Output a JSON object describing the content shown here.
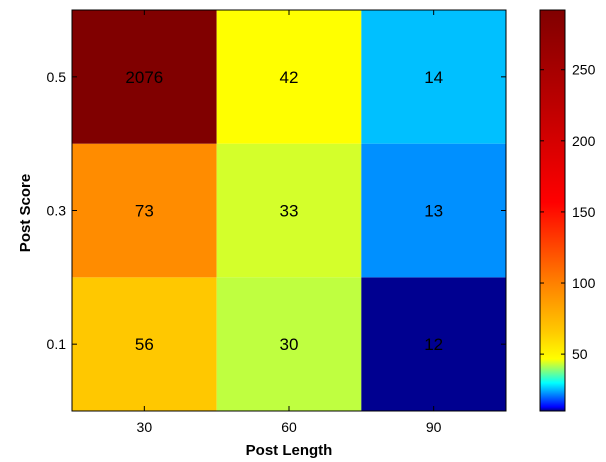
{
  "chart_data": {
    "type": "heatmap",
    "title": "",
    "xlabel": "Post Length",
    "ylabel": "Post Score",
    "x_categories": [
      "30",
      "60",
      "90"
    ],
    "y_categories": [
      "0.1",
      "0.3",
      "0.5"
    ],
    "values": [
      [
        56,
        30,
        12
      ],
      [
        73,
        33,
        13
      ],
      [
        2076,
        42,
        14
      ]
    ],
    "cell_colors": [
      [
        "#ffc800",
        "#bfff40",
        "#000090"
      ],
      [
        "#ff8c00",
        "#d4ff2b",
        "#0090ff"
      ],
      [
        "#800000",
        "#ffff00",
        "#00c0ff"
      ]
    ],
    "colorbar": {
      "ticks": [
        "50",
        "100",
        "150",
        "200",
        "250"
      ],
      "tick_values": [
        50,
        100,
        150,
        200,
        250
      ],
      "range": [
        10,
        292
      ],
      "colormap": "jet"
    },
    "grid": false,
    "legend": "colorbar-right"
  }
}
